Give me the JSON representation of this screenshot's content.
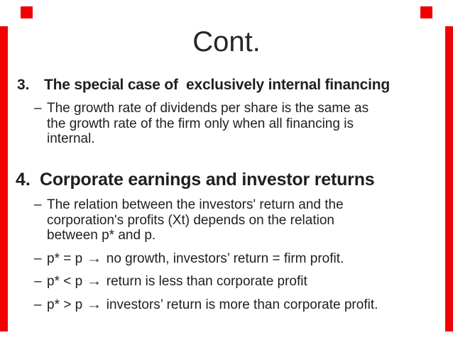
{
  "slide": {
    "title": "Cont.",
    "bullet_dash": "–",
    "arrow_glyph": "→",
    "colors": {
      "accent_red": "#ee0202",
      "text": "#1f1f1f",
      "background": "#ffffff"
    },
    "item3": {
      "number": "3.",
      "heading": "The special case of  exclusively internal financing",
      "bullet1": {
        "lines": {
          "0": "The growth rate of dividends per share is the same as",
          "1": "the growth rate of the firm only when all financing is",
          "2": "internal."
        }
      }
    },
    "item4": {
      "number": "4.",
      "heading": "Corporate earnings and investor returns",
      "bullet1": {
        "lines": {
          "0": "The relation between the investors' return and the",
          "1": "corporation's profits (Xt) depends on the relation",
          "2": "between p* and p."
        }
      },
      "bullet2": {
        "pre": "p* = p",
        "post": "no growth, investors’ return = firm profit."
      },
      "bullet3": {
        "pre": "p* < p",
        "post": "return is less than corporate profit"
      },
      "bullet4": {
        "pre": "p* > p",
        "post": "investors’ return is more than corporate profit."
      }
    }
  }
}
